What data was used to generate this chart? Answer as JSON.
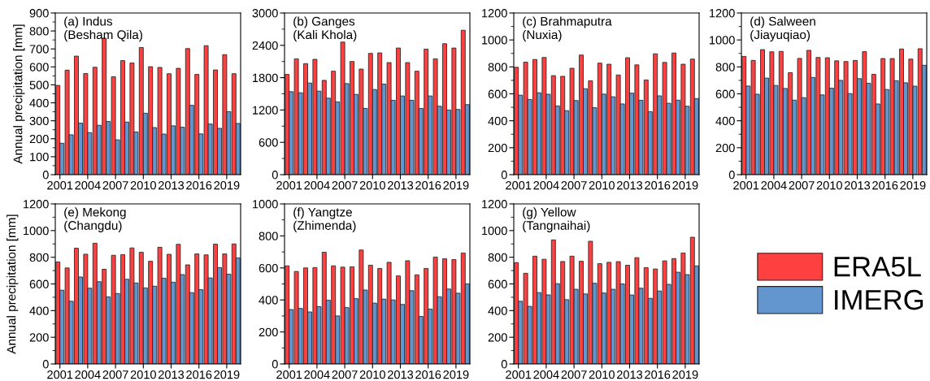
{
  "chart_data": [
    {
      "type": "bar",
      "title": "(a) Indus",
      "subtitle": "(Besham Qila)",
      "ylabel": "Annual precipitation [mm]",
      "legend": "bottom right",
      "x": [
        2001,
        2002,
        2003,
        2004,
        2005,
        2006,
        2007,
        2008,
        2009,
        2010,
        2011,
        2012,
        2013,
        2014,
        2015,
        2016,
        2017,
        2018,
        2019,
        2020
      ],
      "xlim": [
        2000.5,
        2020.5
      ],
      "xticks": [
        2001,
        2004,
        2007,
        2010,
        2013,
        2016,
        2019
      ],
      "ylim": [
        0,
        900
      ],
      "yticks": [
        0,
        100,
        200,
        300,
        400,
        500,
        600,
        700,
        800,
        900
      ],
      "series": [
        {
          "name": "ERA5L",
          "color": "#ff4040",
          "values": [
            497,
            582,
            660,
            563,
            598,
            760,
            545,
            635,
            622,
            708,
            601,
            597,
            562,
            592,
            702,
            558,
            718,
            583,
            668,
            562
          ]
        },
        {
          "name": "IMERG",
          "color": "#6395ce",
          "values": [
            175,
            222,
            287,
            234,
            275,
            296,
            194,
            293,
            238,
            342,
            262,
            226,
            272,
            264,
            386,
            227,
            282,
            258,
            351,
            285
          ]
        }
      ]
    },
    {
      "type": "bar",
      "title": "(b) Ganges",
      "subtitle": "(Kali Khola)",
      "x": [
        2001,
        2002,
        2003,
        2004,
        2005,
        2006,
        2007,
        2008,
        2009,
        2010,
        2011,
        2012,
        2013,
        2014,
        2015,
        2016,
        2017,
        2018,
        2019,
        2020
      ],
      "xlim": [
        2000.5,
        2020.5
      ],
      "xticks": [
        2001,
        2004,
        2007,
        2010,
        2013,
        2016,
        2019
      ],
      "ylim": [
        0,
        3000
      ],
      "yticks": [
        0,
        600,
        1200,
        1800,
        2400,
        3000
      ],
      "series": [
        {
          "color": "#ff4040",
          "values": [
            1860,
            2150,
            2060,
            2140,
            1750,
            1920,
            2460,
            2100,
            1960,
            2250,
            2260,
            2080,
            2350,
            2080,
            1920,
            2330,
            2150,
            2430,
            2350,
            2680
          ]
        },
        {
          "color": "#6395ce",
          "values": [
            1540,
            1520,
            1700,
            1550,
            1420,
            1350,
            1690,
            1490,
            1230,
            1580,
            1680,
            1380,
            1460,
            1380,
            1230,
            1460,
            1270,
            1200,
            1210,
            1300
          ]
        }
      ]
    },
    {
      "type": "bar",
      "title": "(c) Brahmaputra",
      "subtitle": "(Nuxia)",
      "x": [
        2001,
        2002,
        2003,
        2004,
        2005,
        2006,
        2007,
        2008,
        2009,
        2010,
        2011,
        2012,
        2013,
        2014,
        2015,
        2016,
        2017,
        2018,
        2019,
        2020
      ],
      "xlim": [
        2000.5,
        2020.5
      ],
      "xticks": [
        2001,
        2004,
        2007,
        2010,
        2013,
        2016,
        2019
      ],
      "ylim": [
        0,
        1200
      ],
      "yticks": [
        0,
        200,
        400,
        600,
        800,
        1000,
        1200
      ],
      "series": [
        {
          "color": "#ff4040",
          "values": [
            797,
            835,
            855,
            870,
            735,
            730,
            790,
            888,
            697,
            828,
            820,
            740,
            868,
            815,
            703,
            897,
            833,
            903,
            820,
            858
          ]
        },
        {
          "color": "#6395ce",
          "values": [
            590,
            558,
            608,
            597,
            510,
            475,
            550,
            638,
            497,
            598,
            578,
            525,
            605,
            552,
            467,
            585,
            530,
            553,
            508,
            565
          ]
        }
      ]
    },
    {
      "type": "bar",
      "title": "(d) Salween",
      "subtitle": "(Jiayuqiao)",
      "x": [
        2001,
        2002,
        2003,
        2004,
        2005,
        2006,
        2007,
        2008,
        2009,
        2010,
        2011,
        2012,
        2013,
        2014,
        2015,
        2016,
        2017,
        2018,
        2019,
        2020
      ],
      "xlim": [
        2000.5,
        2020.5
      ],
      "xticks": [
        2001,
        2004,
        2007,
        2010,
        2013,
        2016,
        2019
      ],
      "ylim": [
        0,
        1200
      ],
      "yticks": [
        0,
        200,
        400,
        600,
        800,
        1000,
        1200
      ],
      "series": [
        {
          "color": "#ff4040",
          "values": [
            878,
            848,
            928,
            912,
            915,
            757,
            863,
            923,
            870,
            868,
            845,
            840,
            848,
            913,
            745,
            862,
            862,
            933,
            858,
            935
          ]
        },
        {
          "color": "#6395ce",
          "values": [
            658,
            597,
            717,
            662,
            640,
            553,
            572,
            722,
            592,
            642,
            700,
            602,
            713,
            678,
            525,
            632,
            697,
            682,
            657,
            812
          ]
        }
      ]
    },
    {
      "type": "bar",
      "title": "(e) Mekong",
      "subtitle": "(Changdu)",
      "ylabel": "Annual precipitation [mm]",
      "x": [
        2001,
        2002,
        2003,
        2004,
        2005,
        2006,
        2007,
        2008,
        2009,
        2010,
        2011,
        2012,
        2013,
        2014,
        2015,
        2016,
        2017,
        2018,
        2019,
        2020
      ],
      "xlim": [
        2000.5,
        2020.5
      ],
      "xticks": [
        2001,
        2004,
        2007,
        2010,
        2013,
        2016,
        2019
      ],
      "ylim": [
        0,
        1200
      ],
      "yticks": [
        0,
        200,
        400,
        600,
        800,
        1000,
        1200
      ],
      "series": [
        {
          "color": "#ff4040",
          "values": [
            765,
            720,
            868,
            823,
            905,
            710,
            815,
            820,
            870,
            837,
            770,
            875,
            822,
            897,
            743,
            825,
            818,
            898,
            825,
            900
          ]
        },
        {
          "color": "#6395ce",
          "values": [
            553,
            470,
            652,
            568,
            617,
            503,
            528,
            635,
            607,
            570,
            583,
            643,
            613,
            670,
            535,
            557,
            645,
            722,
            673,
            795
          ]
        }
      ]
    },
    {
      "type": "bar",
      "title": "(f) Yangtze",
      "subtitle": "(Zhimenda)",
      "x": [
        2001,
        2002,
        2003,
        2004,
        2005,
        2006,
        2007,
        2008,
        2009,
        2010,
        2011,
        2012,
        2013,
        2014,
        2015,
        2016,
        2017,
        2018,
        2019,
        2020
      ],
      "xlim": [
        2000.5,
        2020.5
      ],
      "xticks": [
        2001,
        2004,
        2007,
        2010,
        2013,
        2016,
        2019
      ],
      "ylim": [
        0,
        1000
      ],
      "yticks": [
        0,
        200,
        400,
        600,
        800,
        1000
      ],
      "series": [
        {
          "color": "#ff4040",
          "values": [
            613,
            578,
            600,
            602,
            698,
            613,
            605,
            607,
            712,
            617,
            597,
            635,
            550,
            645,
            557,
            597,
            668,
            657,
            652,
            693
          ]
        },
        {
          "color": "#6395ce",
          "values": [
            340,
            347,
            325,
            358,
            398,
            300,
            352,
            408,
            462,
            380,
            405,
            400,
            372,
            458,
            297,
            343,
            420,
            468,
            442,
            500
          ]
        }
      ]
    },
    {
      "type": "bar",
      "title": "(g) Yellow",
      "subtitle": "(Tangnaihai)",
      "x": [
        2001,
        2002,
        2003,
        2004,
        2005,
        2006,
        2007,
        2008,
        2009,
        2010,
        2011,
        2012,
        2013,
        2014,
        2015,
        2016,
        2017,
        2018,
        2019,
        2020
      ],
      "xlim": [
        2000.5,
        2020.5
      ],
      "xticks": [
        2001,
        2004,
        2007,
        2010,
        2013,
        2016,
        2019
      ],
      "ylim": [
        0,
        1200
      ],
      "yticks": [
        0,
        200,
        400,
        600,
        800,
        1000,
        1200
      ],
      "series": [
        {
          "color": "#ff4040",
          "values": [
            760,
            680,
            808,
            785,
            930,
            768,
            808,
            770,
            920,
            752,
            762,
            767,
            740,
            797,
            722,
            712,
            773,
            790,
            832,
            950
          ]
        },
        {
          "color": "#6395ce",
          "values": [
            470,
            432,
            535,
            518,
            602,
            482,
            560,
            525,
            605,
            532,
            560,
            600,
            517,
            568,
            492,
            547,
            597,
            688,
            670,
            735
          ]
        }
      ]
    }
  ]
}
